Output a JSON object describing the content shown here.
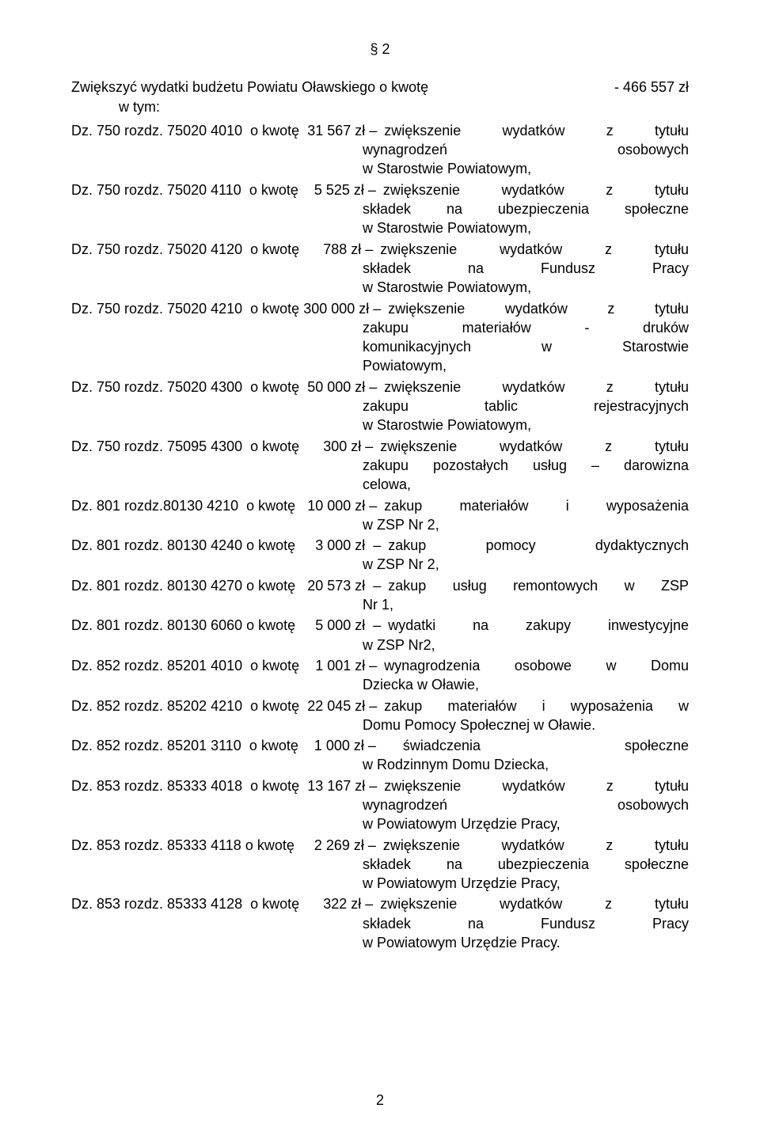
{
  "section_marker": "§ 2",
  "intro": {
    "line1_left": "Zwiększyć wydatki budżetu Powiatu Oławskiego o kwotę",
    "line1_right": "- 466 557 zł",
    "line2": "w tym:"
  },
  "entries": [
    {
      "prefix": "Dz. 750 rozdz. 75020 4010  o kwotę  ",
      "amount": "31 567 zł – ",
      "desc1": "zwiększenie wydatków z tytułu",
      "cont": [
        "wynagrodzeń osobowych"
      ],
      "last": "w Starostwie Powiatowym,"
    },
    {
      "prefix": "Dz. 750 rozdz. 75020 4110  o kwotę   ",
      "amount": " 5 525 zł – ",
      "desc1": "zwiększenie wydatków z tytułu",
      "cont": [
        "składek na ubezpieczenia społeczne"
      ],
      "last": "w Starostwie Powiatowym,"
    },
    {
      "prefix": "Dz. 750 rozdz. 75020 4120  o kwotę     ",
      "amount": " 788 zł – ",
      "desc1": "zwiększenie wydatków z tytułu",
      "cont": [
        "składek na Fundusz Pracy"
      ],
      "last": "w Starostwie Powiatowym,"
    },
    {
      "prefix": "Dz. 750 rozdz. 75020 4210  o kwotę ",
      "amount": "300 000 zł – ",
      "desc1": " zwiększenie wydatków z tytułu",
      "cont": [
        "zakupu materiałów - druków",
        "komunikacyjnych w Starostwie"
      ],
      "last": "Powiatowym,"
    },
    {
      "prefix": "Dz. 750 rozdz. 75020 4300  o kwotę  ",
      "amount": "50 000 zł – ",
      "desc1": "zwiększenie wydatków z tytułu",
      "cont": [
        "zakupu tablic rejestracyjnych"
      ],
      "last": "w Starostwie Powiatowym,"
    },
    {
      "prefix": "Dz. 750 rozdz. 75095 4300  o kwotę      ",
      "amount": "300 zł – ",
      "desc1": "zwiększenie wydatków z tytułu",
      "cont": [
        "zakupu pozostałych usług – darowizna"
      ],
      "last": "celowa,"
    },
    {
      "prefix": "Dz. 801 rozdz.80130 4210  o kwotę   ",
      "amount": "10 000 zł – ",
      "desc1": "zakup materiałów  i  wyposażenia",
      "cont": [],
      "last": "w ZSP Nr 2,"
    },
    {
      "prefix": "Dz. 801 rozdz. 80130 4240 o kwotę    ",
      "amount": " 3 000 zł  – ",
      "desc1": " zakup  pomocy  dydaktycznych",
      "cont": [],
      "last": "w ZSP Nr 2,"
    },
    {
      "prefix": "Dz. 801 rozdz. 80130 4270 o kwotę   ",
      "amount": "20 573 zł  – ",
      "desc1": "zakup usług remontowych w ZSP",
      "cont": [],
      "last": "Nr 1,"
    },
    {
      "prefix": "Dz. 801 rozdz. 80130 6060 o kwotę    ",
      "amount": " 5 000 zł  – ",
      "desc1": " wydatki na zakupy inwestycyjne",
      "cont": [],
      "last": "w ZSP Nr2,"
    },
    {
      "prefix": "Dz. 852 rozdz. 85201 4010  o kwotę   ",
      "amount": " 1 001 zł – ",
      "desc1": "wynagrodzenia osobowe w Domu",
      "cont": [],
      "last": "Dziecka w Oławie,"
    },
    {
      "prefix": "Dz. 852 rozdz. 85202 4210  o kwotę  ",
      "amount": "22 045 zł – ",
      "desc1": "zakup materiałów i wyposażenia w",
      "cont": [],
      "last": "Domu Pomocy Społecznej w Oławie."
    },
    {
      "prefix": "Dz. 852 rozdz. 85201 3110  o kwotę    ",
      "amount": "1 000 zł –      ",
      "desc1": "świadczenia społeczne",
      "cont": [],
      "last": "w Rodzinnym Domu Dziecka,"
    },
    {
      "prefix": "Dz. 853 rozdz. 85333 4018  o kwotę  ",
      "amount": "13 167 zł – ",
      "desc1": "zwiększenie wydatków z tytułu",
      "cont": [
        "wynagrodzeń osobowych"
      ],
      "last": "w Powiatowym Urzędzie Pracy,"
    },
    {
      "prefix": "Dz. 853 rozdz. 85333 4118 o kwotę    ",
      "amount": " 2 269 zł – ",
      "desc1": "zwiększenie wydatków z tytułu",
      "cont": [
        "składek na ubezpieczenia społeczne"
      ],
      "last": "w Powiatowym Urzędzie Pracy,"
    },
    {
      "prefix": "Dz. 853 rozdz. 85333 4128  o kwotę      ",
      "amount": "322 zł – ",
      "desc1": "zwiększenie wydatków z tytułu",
      "cont": [
        "składek na Fundusz Pracy"
      ],
      "last": "w Powiatowym Urzędzie Pracy."
    }
  ],
  "page_number": "2"
}
